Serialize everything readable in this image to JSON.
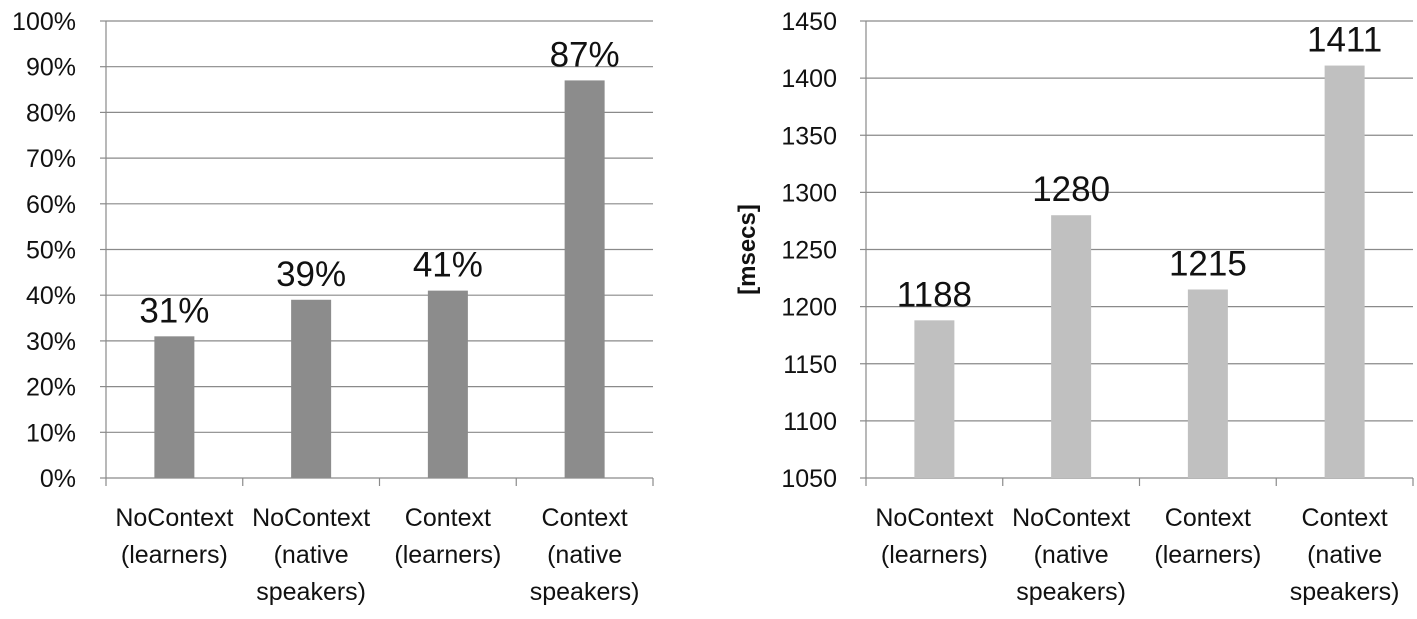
{
  "chart_data": [
    {
      "type": "bar",
      "categories": [
        [
          "NoContext",
          "(learners)"
        ],
        [
          "NoContext",
          "(native",
          "speakers)"
        ],
        [
          "Context",
          "(learners)"
        ],
        [
          "Context",
          "(native",
          "speakers)"
        ]
      ],
      "values": [
        31,
        39,
        41,
        87
      ],
      "data_labels": [
        "31%",
        "39%",
        "41%",
        "87%"
      ],
      "ylabel": "",
      "ylim": [
        0,
        100
      ],
      "yticks": [
        0,
        10,
        20,
        30,
        40,
        50,
        60,
        70,
        80,
        90,
        100
      ],
      "ytick_labels": [
        "0%",
        "10%",
        "20%",
        "30%",
        "40%",
        "50%",
        "60%",
        "70%",
        "80%",
        "90%",
        "100%"
      ],
      "grid": true,
      "bar_color": "#8c8c8c"
    },
    {
      "type": "bar",
      "categories": [
        [
          "NoContext",
          "(learners)"
        ],
        [
          "NoContext",
          "(native",
          "speakers)"
        ],
        [
          "Context",
          "(learners)"
        ],
        [
          "Context",
          "(native",
          "speakers)"
        ]
      ],
      "values": [
        1188,
        1280,
        1215,
        1411
      ],
      "data_labels": [
        "1188",
        "1280",
        "1215",
        "1411"
      ],
      "ylabel": "[msecs]",
      "ylim": [
        1050,
        1450
      ],
      "yticks": [
        1050,
        1100,
        1150,
        1200,
        1250,
        1300,
        1350,
        1400,
        1450
      ],
      "ytick_labels": [
        "1050",
        "1100",
        "1150",
        "1200",
        "1250",
        "1300",
        "1350",
        "1400",
        "1450"
      ],
      "grid": true,
      "bar_color": "#c0c0c0"
    }
  ]
}
